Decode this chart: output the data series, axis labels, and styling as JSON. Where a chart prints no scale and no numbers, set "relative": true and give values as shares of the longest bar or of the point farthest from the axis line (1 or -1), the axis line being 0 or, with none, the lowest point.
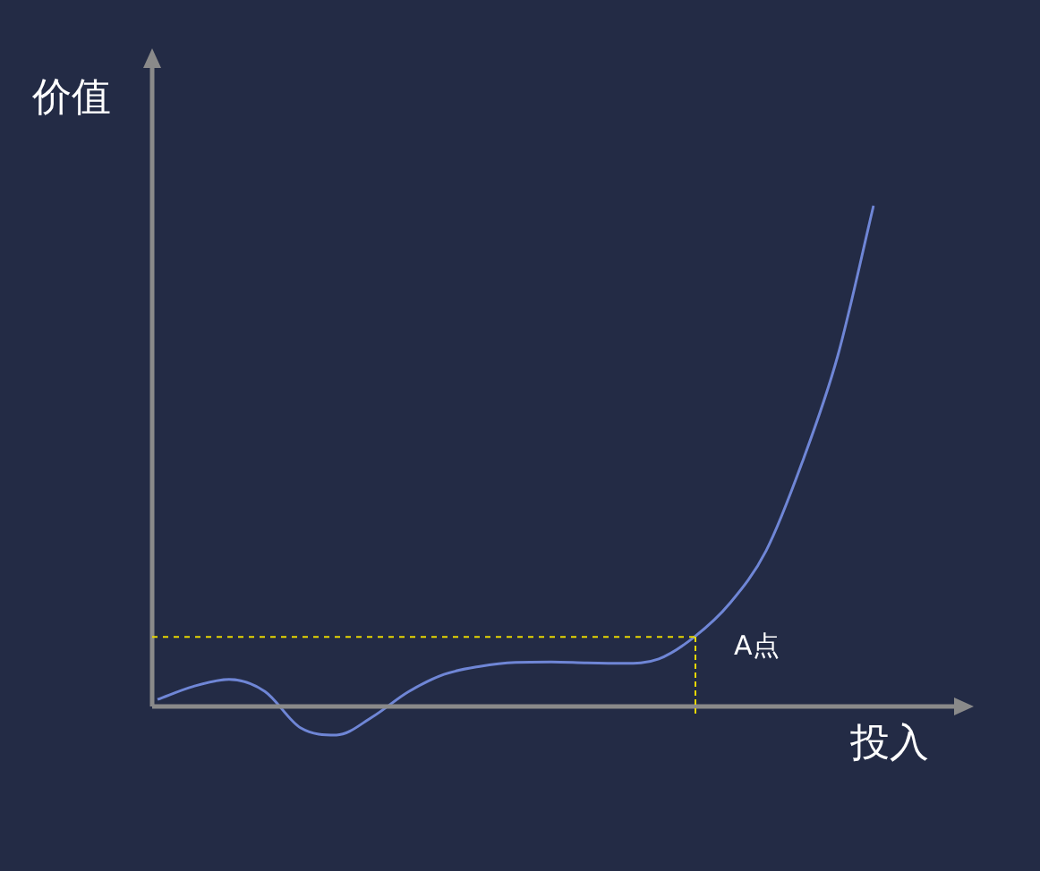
{
  "chart_data": {
    "type": "line",
    "relative": true,
    "xlabel": "投入",
    "ylabel": "价值",
    "categories": [
      null,
      null,
      null,
      null,
      null,
      null,
      null,
      null,
      null,
      null,
      null,
      null,
      null,
      null,
      null,
      null,
      null,
      null,
      null,
      null,
      null
    ],
    "series": [
      {
        "color": "#6f86d6",
        "values": [
          0.014,
          0.04,
          0.054,
          0.03,
          -0.043,
          -0.057,
          -0.021,
          0.029,
          0.064,
          0.08,
          0.088,
          0.089,
          0.087,
          0.086,
          0.095,
          0.139,
          0.207,
          0.311,
          0.486,
          0.7,
          1
        ]
      }
    ],
    "ref_lines": [
      {
        "axis": "y",
        "value": 0.139,
        "label": "A点",
        "color": "#e8d800",
        "line_style": "dashed"
      }
    ],
    "marker": "none",
    "legend": false
  }
}
